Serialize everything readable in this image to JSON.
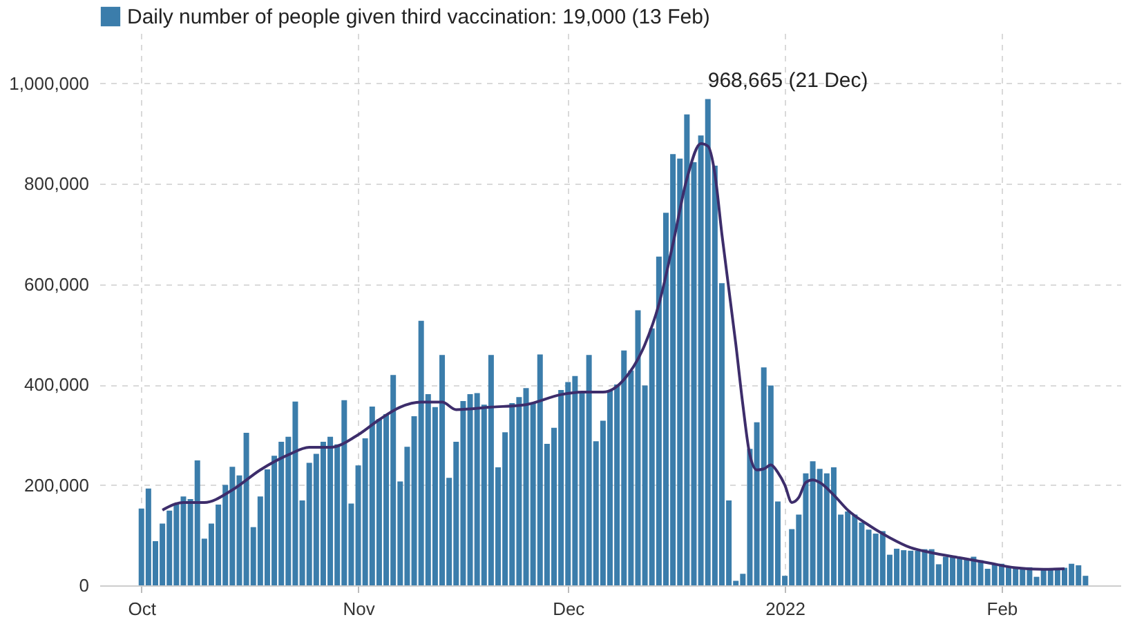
{
  "chart_data": {
    "type": "bar",
    "legend": "top left",
    "grid": true,
    "xlim": [
      "2021-09-25",
      "2022-02-18"
    ],
    "xticks": [
      {
        "value": "2021-10-01",
        "label": "Oct"
      },
      {
        "value": "2021-11-01",
        "label": "Nov"
      },
      {
        "value": "2021-12-01",
        "label": "Dec"
      },
      {
        "value": "2022-01-01",
        "label": "2022"
      },
      {
        "value": "2022-02-01",
        "label": "Feb"
      }
    ],
    "ylim": [
      0,
      1100000
    ],
    "yticks": [
      0,
      {
        "value": 200000,
        "label": "200,000"
      },
      {
        "value": 400000,
        "label": "400,000"
      },
      {
        "value": 600000,
        "label": "600,000"
      },
      {
        "value": 800000,
        "label": "800,000"
      },
      {
        "value": 1000000,
        "label": "1,000,000"
      }
    ],
    "annotations": [
      {
        "text": "968,665 (21 Dec)",
        "x": "2021-12-21",
        "y": 968665
      }
    ],
    "x": [
      "2021-10-01",
      "2021-10-02",
      "2021-10-03",
      "2021-10-04",
      "2021-10-05",
      "2021-10-06",
      "2021-10-07",
      "2021-10-08",
      "2021-10-09",
      "2021-10-10",
      "2021-10-11",
      "2021-10-12",
      "2021-10-13",
      "2021-10-14",
      "2021-10-15",
      "2021-10-16",
      "2021-10-17",
      "2021-10-18",
      "2021-10-19",
      "2021-10-20",
      "2021-10-21",
      "2021-10-22",
      "2021-10-23",
      "2021-10-24",
      "2021-10-25",
      "2021-10-26",
      "2021-10-27",
      "2021-10-28",
      "2021-10-29",
      "2021-10-30",
      "2021-10-31",
      "2021-11-01",
      "2021-11-02",
      "2021-11-03",
      "2021-11-04",
      "2021-11-05",
      "2021-11-06",
      "2021-11-07",
      "2021-11-08",
      "2021-11-09",
      "2021-11-10",
      "2021-11-11",
      "2021-11-12",
      "2021-11-13",
      "2021-11-14",
      "2021-11-15",
      "2021-11-16",
      "2021-11-17",
      "2021-11-18",
      "2021-11-19",
      "2021-11-20",
      "2021-11-21",
      "2021-11-22",
      "2021-11-23",
      "2021-11-24",
      "2021-11-25",
      "2021-11-26",
      "2021-11-27",
      "2021-11-28",
      "2021-11-29",
      "2021-11-30",
      "2021-12-01",
      "2021-12-02",
      "2021-12-03",
      "2021-12-04",
      "2021-12-05",
      "2021-12-06",
      "2021-12-07",
      "2021-12-08",
      "2021-12-09",
      "2021-12-10",
      "2021-12-11",
      "2021-12-12",
      "2021-12-13",
      "2021-12-14",
      "2021-12-15",
      "2021-12-16",
      "2021-12-17",
      "2021-12-18",
      "2021-12-19",
      "2021-12-20",
      "2021-12-21",
      "2021-12-22",
      "2021-12-23",
      "2021-12-24",
      "2021-12-25",
      "2021-12-26",
      "2021-12-27",
      "2021-12-28",
      "2021-12-29",
      "2021-12-30",
      "2021-12-31",
      "2022-01-01",
      "2022-01-02",
      "2022-01-03",
      "2022-01-04",
      "2022-01-05",
      "2022-01-06",
      "2022-01-07",
      "2022-01-08",
      "2022-01-09",
      "2022-01-10",
      "2022-01-11",
      "2022-01-12",
      "2022-01-13",
      "2022-01-14",
      "2022-01-15",
      "2022-01-16",
      "2022-01-17",
      "2022-01-18",
      "2022-01-19",
      "2022-01-20",
      "2022-01-21",
      "2022-01-22",
      "2022-01-23",
      "2022-01-24",
      "2022-01-25",
      "2022-01-26",
      "2022-01-27",
      "2022-01-28",
      "2022-01-29",
      "2022-01-30",
      "2022-01-31",
      "2022-02-01",
      "2022-02-02",
      "2022-02-03",
      "2022-02-04",
      "2022-02-05",
      "2022-02-06",
      "2022-02-07",
      "2022-02-08",
      "2022-02-09",
      "2022-02-10",
      "2022-02-11",
      "2022-02-12",
      "2022-02-13"
    ],
    "series": [
      {
        "name": "Daily number of people given third vaccination: 19,000 (13 Feb)",
        "color": "#3b7dab",
        "values": [
          153000,
          193000,
          88000,
          123000,
          149000,
          163000,
          177000,
          172000,
          249000,
          93000,
          123000,
          161000,
          200000,
          236000,
          219000,
          304000,
          116000,
          177000,
          231000,
          258000,
          286000,
          296000,
          366000,
          169000,
          244000,
          262000,
          286000,
          296000,
          281000,
          369000,
          163000,
          239000,
          293000,
          356000,
          331000,
          341000,
          419000,
          207000,
          276000,
          337000,
          527000,
          381000,
          355000,
          459000,
          214000,
          286000,
          367000,
          381000,
          383000,
          360000,
          459000,
          235000,
          305000,
          363000,
          375000,
          393000,
          363000,
          460000,
          282000,
          314000,
          389000,
          405000,
          417000,
          383000,
          459000,
          287000,
          328000,
          389000,
          400000,
          468000,
          428000,
          548000,
          398000,
          512000,
          655000,
          742000,
          859000,
          850000,
          938000,
          843000,
          896000,
          968665,
          836000,
          602000,
          169000,
          9000,
          23000,
          272000,
          325000,
          434000,
          398000,
          167000,
          19000,
          112000,
          141000,
          223000,
          247000,
          232000,
          223000,
          235000,
          141000,
          147000,
          141000,
          125000,
          111000,
          103000,
          108000,
          61000,
          73000,
          70000,
          69000,
          69000,
          72000,
          72000,
          42000,
          57000,
          56000,
          54000,
          52000,
          57000,
          50000,
          33000,
          42000,
          43000,
          38000,
          36000,
          35000,
          36000,
          17000,
          32000,
          32000,
          33000,
          35000,
          43000,
          40000,
          19000
        ]
      },
      {
        "type": "line",
        "color": "#3d2d6b",
        "x": [
          "2021-10-04",
          "2021-10-07",
          "2021-10-10",
          "2021-10-14",
          "2021-10-18",
          "2021-10-22",
          "2021-10-25",
          "2021-10-28",
          "2021-11-01",
          "2021-11-04",
          "2021-11-07",
          "2021-11-10",
          "2021-11-13",
          "2021-11-15",
          "2021-11-20",
          "2021-11-25",
          "2021-11-30",
          "2021-12-03",
          "2021-12-06",
          "2021-12-09",
          "2021-12-12",
          "2021-12-14",
          "2021-12-16",
          "2021-12-18",
          "2021-12-20",
          "2021-12-21",
          "2021-12-22",
          "2021-12-23",
          "2021-12-25",
          "2021-12-26",
          "2021-12-27",
          "2021-12-28",
          "2021-12-29",
          "2021-12-30",
          "2021-12-31",
          "2022-01-01",
          "2022-01-02",
          "2022-01-03",
          "2022-01-04",
          "2022-01-05",
          "2022-01-06",
          "2022-01-08",
          "2022-01-10",
          "2022-01-13",
          "2022-01-16",
          "2022-01-19",
          "2022-01-22",
          "2022-01-26",
          "2022-01-30",
          "2022-02-03",
          "2022-02-07",
          "2022-02-10"
        ],
        "values": [
          150000,
          165000,
          165000,
          190000,
          230000,
          260000,
          275000,
          275000,
          300000,
          330000,
          355000,
          365000,
          365000,
          350000,
          355000,
          360000,
          380000,
          385000,
          385000,
          410000,
          480000,
          560000,
          680000,
          810000,
          880000,
          875000,
          820000,
          700000,
          480000,
          360000,
          260000,
          230000,
          232000,
          240000,
          225000,
          200000,
          165000,
          175000,
          205000,
          210000,
          205000,
          180000,
          150000,
          120000,
          95000,
          75000,
          65000,
          55000,
          45000,
          35000,
          32000,
          33000
        ]
      }
    ]
  }
}
